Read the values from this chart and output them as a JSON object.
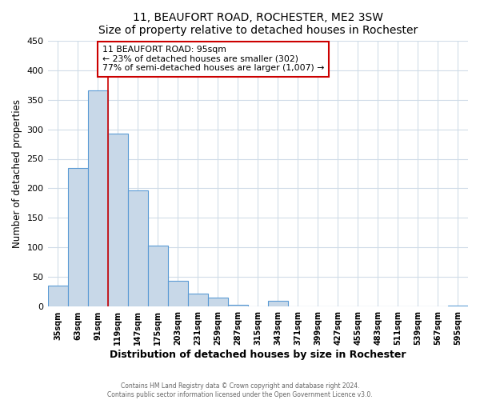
{
  "title": "11, BEAUFORT ROAD, ROCHESTER, ME2 3SW",
  "subtitle": "Size of property relative to detached houses in Rochester",
  "xlabel": "Distribution of detached houses by size in Rochester",
  "ylabel": "Number of detached properties",
  "bar_labels": [
    "35sqm",
    "63sqm",
    "91sqm",
    "119sqm",
    "147sqm",
    "175sqm",
    "203sqm",
    "231sqm",
    "259sqm",
    "287sqm",
    "315sqm",
    "343sqm",
    "371sqm",
    "399sqm",
    "427sqm",
    "455sqm",
    "483sqm",
    "511sqm",
    "539sqm",
    "567sqm",
    "595sqm"
  ],
  "bar_values": [
    36,
    234,
    365,
    292,
    196,
    103,
    44,
    22,
    15,
    3,
    0,
    10,
    1,
    0,
    0,
    0,
    0,
    0,
    0,
    0,
    2
  ],
  "bar_color": "#c8d8e8",
  "bar_edge_color": "#5b9bd5",
  "property_line_x": 2.5,
  "property_line_color": "#cc0000",
  "box_text_line1": "11 BEAUFORT ROAD: 95sqm",
  "box_text_line2": "← 23% of detached houses are smaller (302)",
  "box_text_line3": "77% of semi-detached houses are larger (1,007) →",
  "box_color": "#cc0000",
  "ylim": [
    0,
    450
  ],
  "yticks": [
    0,
    50,
    100,
    150,
    200,
    250,
    300,
    350,
    400,
    450
  ],
  "footer_line1": "Contains HM Land Registry data © Crown copyright and database right 2024.",
  "footer_line2": "Contains public sector information licensed under the Open Government Licence v3.0.",
  "background_color": "#ffffff",
  "plot_background": "#ffffff",
  "grid_color": "#d0dce8"
}
